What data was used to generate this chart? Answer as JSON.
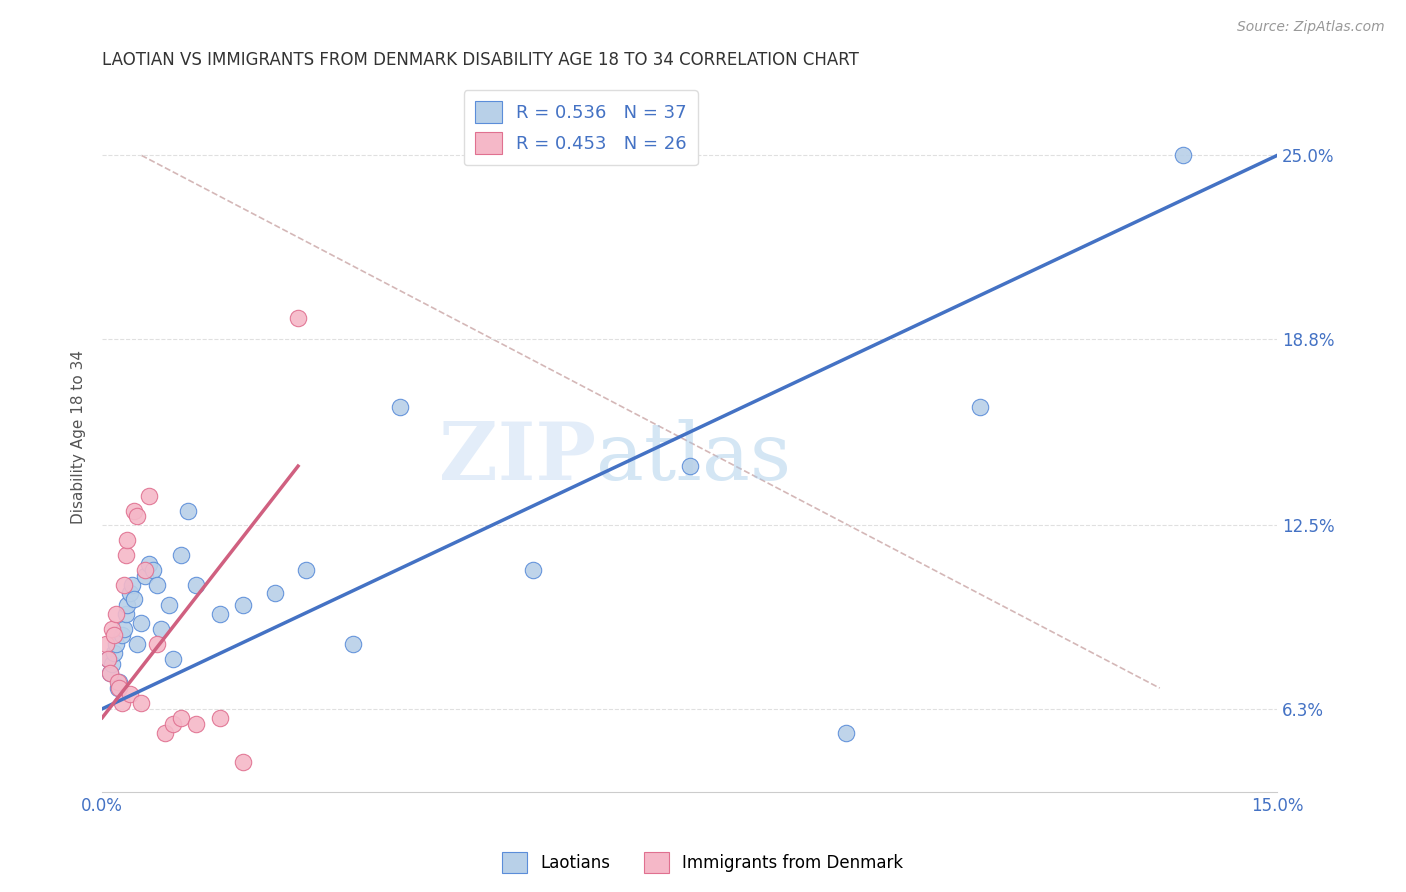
{
  "title": "LAOTIAN VS IMMIGRANTS FROM DENMARK DISABILITY AGE 18 TO 34 CORRELATION CHART",
  "source": "Source: ZipAtlas.com",
  "ylabel_label": "Disability Age 18 to 34",
  "xlim": [
    0.0,
    15.0
  ],
  "ylim": [
    3.5,
    27.5
  ],
  "watermark_zip": "ZIP",
  "watermark_atlas": "atlas",
  "legend_blue_r": "R = 0.536",
  "legend_blue_n": "N = 37",
  "legend_pink_r": "R = 0.453",
  "legend_pink_n": "N = 26",
  "blue_color": "#b8d0e8",
  "pink_color": "#f5b8c8",
  "blue_edge_color": "#5b8dd9",
  "pink_edge_color": "#e07090",
  "blue_line_color": "#4472c4",
  "pink_line_color": "#d06080",
  "diag_line_color": "#d0b0b0",
  "y_tick_vals": [
    6.3,
    12.5,
    18.8,
    25.0
  ],
  "y_tick_labels": [
    "6.3%",
    "12.5%",
    "18.8%",
    "25.0%"
  ],
  "blue_scatter_x": [
    0.08,
    0.1,
    0.12,
    0.15,
    0.18,
    0.2,
    0.22,
    0.25,
    0.28,
    0.3,
    0.32,
    0.35,
    0.38,
    0.4,
    0.45,
    0.5,
    0.55,
    0.6,
    0.65,
    0.7,
    0.75,
    0.85,
    0.9,
    1.0,
    1.1,
    1.2,
    1.5,
    1.8,
    2.2,
    2.6,
    3.2,
    3.8,
    5.5,
    7.5,
    9.5,
    11.2,
    13.8
  ],
  "blue_scatter_y": [
    8.0,
    7.5,
    7.8,
    8.2,
    8.5,
    7.0,
    7.2,
    8.8,
    9.0,
    9.5,
    9.8,
    10.2,
    10.5,
    10.0,
    8.5,
    9.2,
    10.8,
    11.2,
    11.0,
    10.5,
    9.0,
    9.8,
    8.0,
    11.5,
    13.0,
    10.5,
    9.5,
    9.8,
    10.2,
    11.0,
    8.5,
    16.5,
    11.0,
    14.5,
    5.5,
    16.5,
    25.0
  ],
  "pink_scatter_x": [
    0.05,
    0.08,
    0.1,
    0.12,
    0.15,
    0.18,
    0.2,
    0.22,
    0.25,
    0.28,
    0.3,
    0.32,
    0.35,
    0.4,
    0.45,
    0.5,
    0.55,
    0.6,
    0.7,
    0.8,
    0.9,
    1.0,
    1.2,
    1.5,
    1.8,
    2.5
  ],
  "pink_scatter_y": [
    8.5,
    8.0,
    7.5,
    9.0,
    8.8,
    9.5,
    7.2,
    7.0,
    6.5,
    10.5,
    11.5,
    12.0,
    6.8,
    13.0,
    12.8,
    6.5,
    11.0,
    13.5,
    8.5,
    5.5,
    5.8,
    6.0,
    5.8,
    6.0,
    4.5,
    19.5
  ],
  "blue_line_x0": 0.0,
  "blue_line_y0": 6.3,
  "blue_line_x1": 15.0,
  "blue_line_y1": 25.0,
  "pink_line_x0": 0.0,
  "pink_line_y0": 6.0,
  "pink_line_x1": 2.5,
  "pink_line_y1": 14.5,
  "diag_x0": 0.5,
  "diag_y0": 25.0,
  "diag_x1": 13.5,
  "diag_y1": 7.0
}
